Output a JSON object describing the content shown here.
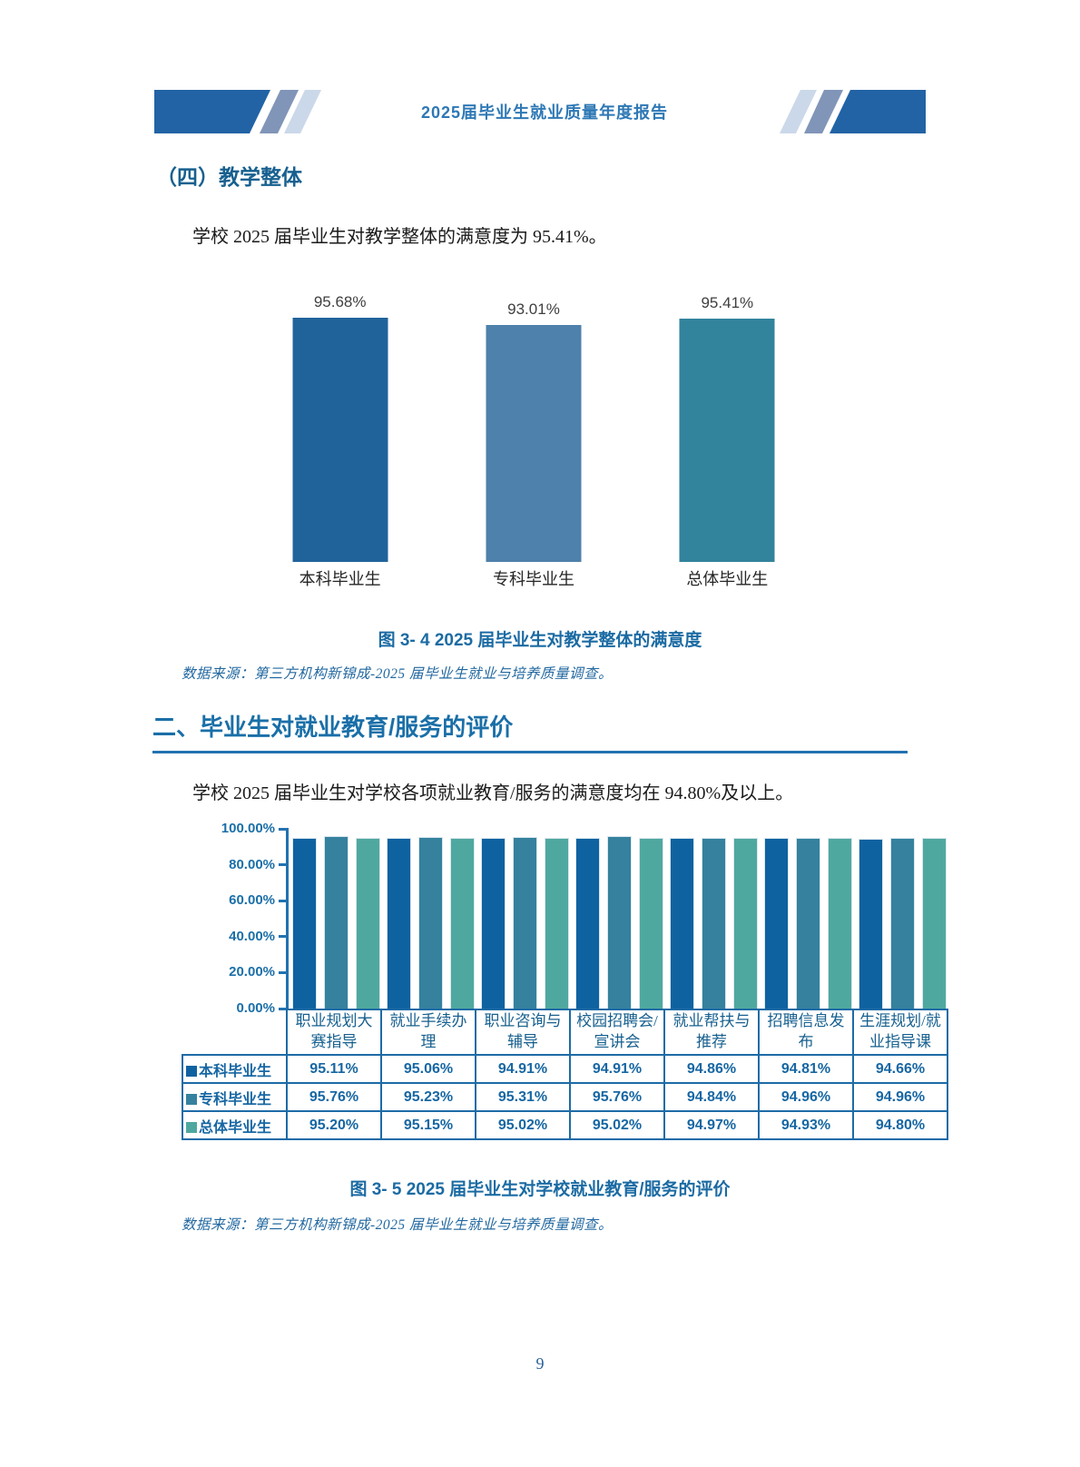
{
  "header": {
    "title": "2025届毕业生就业质量年度报告"
  },
  "section1": {
    "heading": "（四）教学整体",
    "paragraph": "学校 2025 届毕业生对教学整体的满意度为 95.41%。",
    "caption": "图 3- 4  2025 届毕业生对教学整体的满意度",
    "source": "数据来源：第三方机构新锦成-2025 届毕业生就业与培养质量调查。"
  },
  "section2": {
    "heading": "二、毕业生对就业教育/服务的评价",
    "paragraph": "学校 2025 届毕业生对学校各项就业教育/服务的满意度均在 94.80%及以上。",
    "caption": "图 3- 5  2025 届毕业生对学校就业教育/服务的评价",
    "source": "数据来源：第三方机构新锦成-2025 届毕业生就业与培养质量调查。"
  },
  "footer": {
    "page_number": "9"
  },
  "colors": {
    "accent": "#2272B0",
    "title_blue": "#2E78B5",
    "table_border": "#1D6BA6",
    "deco_main": "#2263A5",
    "deco_mid": "#8095B8",
    "deco_light": "#CBD8E9"
  },
  "chart_data": [
    {
      "type": "bar",
      "title": "图 3-4 2025届毕业生对教学整体的满意度",
      "categories": [
        "本科毕业生",
        "专科毕业生",
        "总体毕业生"
      ],
      "values": [
        95.68,
        93.01,
        95.41
      ],
      "data_labels": [
        "95.68%",
        "93.01%",
        "95.41%"
      ],
      "bar_colors": [
        "#20639B",
        "#4E81AB",
        "#32839C"
      ],
      "xlabel": "",
      "ylabel": "",
      "ylim": [
        0,
        100
      ],
      "grid": false,
      "legend": "none"
    },
    {
      "type": "bar",
      "title": "图 3-5 2025届毕业生对学校就业教育/服务的评价",
      "categories": [
        "职业规划大赛指导",
        "就业手续办理",
        "职业咨询与辅导",
        "校园招聘会/宣讲会",
        "就业帮扶与推荐",
        "招聘信息发布",
        "生涯规划/就业指导课"
      ],
      "series": [
        {
          "name": "本科毕业生",
          "color": "#0F62A0",
          "values": [
            95.11,
            95.06,
            94.91,
            94.91,
            94.86,
            94.81,
            94.66
          ]
        },
        {
          "name": "专科毕业生",
          "color": "#35819E",
          "values": [
            95.76,
            95.23,
            95.31,
            95.76,
            94.84,
            94.96,
            94.96
          ]
        },
        {
          "name": "总体毕业生",
          "color": "#4FA89F",
          "values": [
            95.2,
            95.15,
            95.02,
            95.02,
            94.97,
            94.93,
            94.8
          ]
        }
      ],
      "y_ticks": [
        "100.00%",
        "80.00%",
        "60.00%",
        "40.00%",
        "20.00%",
        "0.00%"
      ],
      "xlabel": "",
      "ylabel": "",
      "ylim": [
        0,
        100
      ],
      "grid": false,
      "legend_position": "table-rows-left"
    }
  ]
}
